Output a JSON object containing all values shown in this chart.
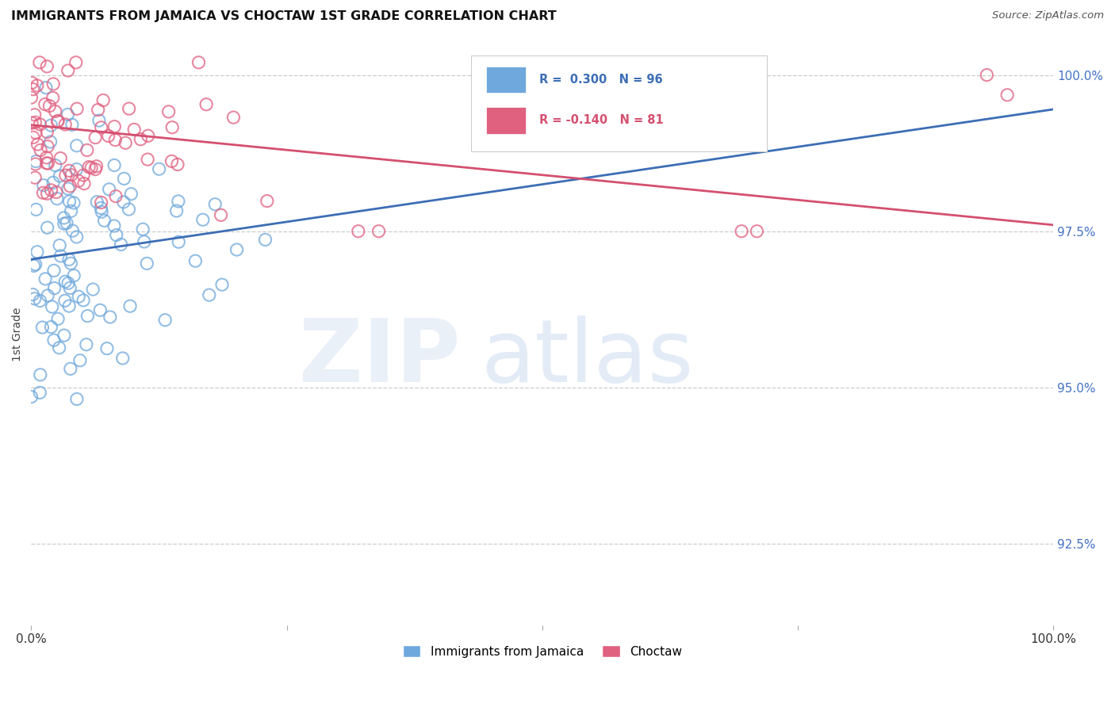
{
  "title": "IMMIGRANTS FROM JAMAICA VS CHOCTAW 1ST GRADE CORRELATION CHART",
  "source": "Source: ZipAtlas.com",
  "ylabel": "1st Grade",
  "jamaica_color": "#6fa8dc",
  "choctaw_color": "#e06080",
  "jamaica_line_color": "#3d6eb5",
  "choctaw_line_color": "#d45070",
  "background_color": "#ffffff",
  "grid_color": "#cccccc",
  "jamaica_R": 0.3,
  "jamaica_N": 96,
  "choctaw_R": -0.14,
  "choctaw_N": 81,
  "xlim": [
    0.0,
    1.0
  ],
  "ylim": [
    0.912,
    1.005
  ],
  "ytick_vals": [
    0.925,
    0.95,
    0.975,
    1.0
  ],
  "ytick_labels": [
    "92.5%",
    "95.0%",
    "97.5%",
    "100.0%"
  ],
  "xtick_vals": [
    0.0,
    0.25,
    0.5,
    0.75,
    1.0
  ],
  "xtick_labels": [
    "0.0%",
    "",
    "",
    "",
    "100.0%"
  ],
  "legend_labels_bottom": [
    "Immigrants from Jamaica",
    "Choctaw"
  ],
  "jam_line_x0": 0.0,
  "jam_line_x1": 1.0,
  "jam_line_y0": 0.9705,
  "jam_line_y1": 0.9945,
  "choc_line_x0": 0.0,
  "choc_line_x1": 1.0,
  "choc_line_y0": 0.992,
  "choc_line_y1": 0.976
}
